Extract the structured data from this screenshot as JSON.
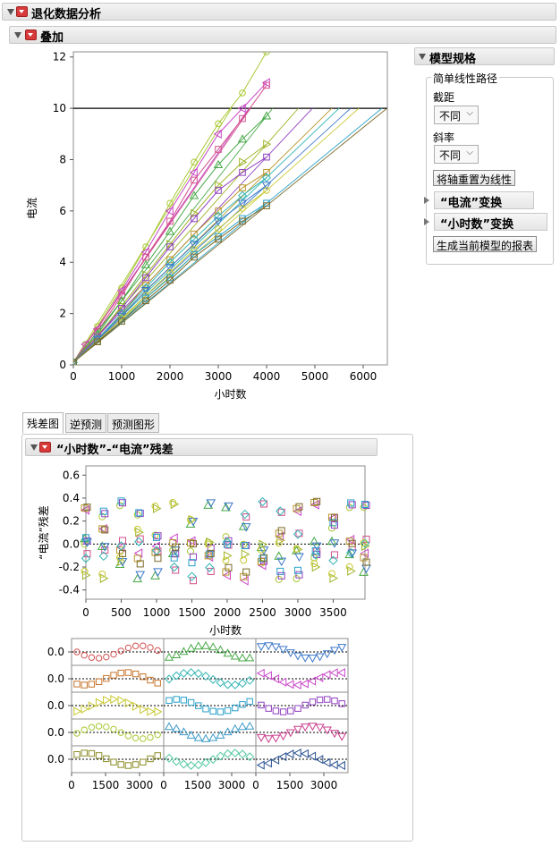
{
  "report": {
    "title": "退化数据分析",
    "overlay_title": "叠加"
  },
  "model_spec": {
    "title": "模型规格",
    "group_title": "简单线性路径",
    "intercept_label": "截距",
    "intercept_value": "不同",
    "slope_label": "斜率",
    "slope_value": "不同",
    "reset_axes_button": "将轴重置为线性",
    "y_transform_label": "“电流”变换",
    "x_transform_label": "“小时数”变换",
    "generate_report_button": "生成当前模型的报表"
  },
  "tabs": [
    "残差图",
    "逆预测",
    "预测图形"
  ],
  "residual_section_title": "“小时数”-“电流”残差",
  "chart_data": [
    {
      "type": "line",
      "xlabel": "小时数",
      "ylabel": "电流",
      "xlim": [
        0,
        6500
      ],
      "ylim": [
        0,
        12.2
      ],
      "x_ticks": [
        0,
        1000,
        2000,
        3000,
        4000,
        5000,
        6000
      ],
      "y_ticks": [
        0,
        2,
        4,
        6,
        8,
        10,
        12
      ],
      "threshold": 10,
      "series": [
        {
          "color": "#a8c832",
          "marker": "circle",
          "values": [
            [
              0,
              0.1
            ],
            [
              250,
              0.8
            ],
            [
              500,
              1.5
            ],
            [
              1000,
              3.0
            ],
            [
              1500,
              4.6
            ],
            [
              2000,
              6.3
            ],
            [
              2500,
              7.9
            ],
            [
              3000,
              9.4
            ],
            [
              3500,
              10.6
            ],
            [
              4000,
              12.2
            ]
          ]
        },
        {
          "color": "#c846c8",
          "marker": "tri-left",
          "values": [
            [
              0,
              0.1
            ],
            [
              250,
              0.8
            ],
            [
              500,
              1.4
            ],
            [
              1000,
              2.9
            ],
            [
              1500,
              4.4
            ],
            [
              2000,
              6.0
            ],
            [
              2500,
              7.5
            ],
            [
              3000,
              9.0
            ],
            [
              3500,
              10.0
            ],
            [
              4000,
              11.0
            ]
          ]
        },
        {
          "color": "#d2508c",
          "marker": "square",
          "values": [
            [
              0,
              0.1
            ],
            [
              500,
              1.3
            ],
            [
              1000,
              2.7
            ],
            [
              1500,
              4.2
            ],
            [
              2000,
              5.6
            ],
            [
              2500,
              7.2
            ],
            [
              3000,
              8.4
            ],
            [
              3500,
              9.6
            ],
            [
              4000,
              10.9
            ]
          ]
        },
        {
          "color": "#46a846",
          "marker": "tri-up",
          "values": [
            [
              0,
              0.1
            ],
            [
              500,
              1.2
            ],
            [
              1000,
              2.5
            ],
            [
              1500,
              3.9
            ],
            [
              2000,
              5.2
            ],
            [
              2500,
              6.6
            ],
            [
              3000,
              7.8
            ],
            [
              3500,
              8.8
            ],
            [
              4000,
              9.7
            ]
          ]
        },
        {
          "color": "#a0b428",
          "marker": "tri-right",
          "values": [
            [
              0,
              0.1
            ],
            [
              500,
              1.1
            ],
            [
              1000,
              2.3
            ],
            [
              1500,
              3.5
            ],
            [
              2000,
              4.7
            ],
            [
              2500,
              5.9
            ],
            [
              3000,
              7.0
            ],
            [
              3500,
              7.9
            ],
            [
              4000,
              8.6
            ]
          ]
        },
        {
          "color": "#9040c0",
          "marker": "square",
          "values": [
            [
              0,
              0.1
            ],
            [
              500,
              1.1
            ],
            [
              1000,
              2.2
            ],
            [
              1500,
              3.4
            ],
            [
              2000,
              4.6
            ],
            [
              2500,
              5.7
            ],
            [
              3000,
              6.8
            ],
            [
              3500,
              7.5
            ],
            [
              4000,
              8.1
            ]
          ]
        },
        {
          "color": "#b8962a",
          "marker": "square",
          "values": [
            [
              0,
              0.1
            ],
            [
              500,
              1.0
            ],
            [
              1000,
              2.0
            ],
            [
              1500,
              3.1
            ],
            [
              2000,
              4.1
            ],
            [
              2500,
              5.1
            ],
            [
              3000,
              6.0
            ],
            [
              3500,
              6.9
            ],
            [
              4000,
              7.5
            ]
          ]
        },
        {
          "color": "#32b4b4",
          "marker": "diamond",
          "values": [
            [
              0,
              0.1
            ],
            [
              500,
              1.0
            ],
            [
              1000,
              2.0
            ],
            [
              1500,
              3.0
            ],
            [
              2000,
              4.0
            ],
            [
              2500,
              4.9
            ],
            [
              3000,
              5.8
            ],
            [
              3500,
              6.6
            ],
            [
              4000,
              7.3
            ]
          ]
        },
        {
          "color": "#3c78c8",
          "marker": "tri-down",
          "values": [
            [
              0,
              0.1
            ],
            [
              500,
              1.0
            ],
            [
              1000,
              1.9
            ],
            [
              1500,
              2.9
            ],
            [
              2000,
              3.8
            ],
            [
              2500,
              4.7
            ],
            [
              3000,
              5.6
            ],
            [
              3500,
              6.3
            ],
            [
              4000,
              7.0
            ]
          ]
        },
        {
          "color": "#c8c832",
          "marker": "circle",
          "values": [
            [
              0,
              0.1
            ],
            [
              500,
              0.9
            ],
            [
              1000,
              1.8
            ],
            [
              1500,
              2.7
            ],
            [
              2000,
              3.6
            ],
            [
              2500,
              4.5
            ],
            [
              3000,
              5.3
            ],
            [
              3500,
              6.1
            ],
            [
              4000,
              6.8
            ]
          ]
        },
        {
          "color": "#28a0c8",
          "marker": "square",
          "values": [
            [
              0,
              0.1
            ],
            [
              500,
              0.9
            ],
            [
              1000,
              1.7
            ],
            [
              1500,
              2.6
            ],
            [
              2000,
              3.4
            ],
            [
              2500,
              4.3
            ],
            [
              3000,
              5.0
            ],
            [
              3500,
              5.7
            ],
            [
              4000,
              6.3
            ]
          ]
        },
        {
          "color": "#7a6a2a",
          "marker": "square",
          "values": [
            [
              0,
              0.1
            ],
            [
              500,
              0.9
            ],
            [
              1000,
              1.7
            ],
            [
              1500,
              2.5
            ],
            [
              2000,
              3.3
            ],
            [
              2500,
              4.2
            ],
            [
              3000,
              4.9
            ],
            [
              3500,
              5.6
            ],
            [
              4000,
              6.2
            ]
          ]
        }
      ]
    },
    {
      "type": "scatter",
      "xlabel": "小时数",
      "ylabel": "“电流”残差",
      "xlim": [
        0,
        3950
      ],
      "ylim": [
        -0.48,
        0.68
      ],
      "x_ticks": [
        0,
        500,
        1000,
        1500,
        2000,
        2500,
        3000,
        3500
      ],
      "y_ticks": [
        -0.4,
        -0.2,
        0.0,
        0.2,
        0.4,
        0.6
      ]
    },
    {
      "type": "scatter",
      "panel_grid": "5 rows x 3 cols",
      "y_tick_label": "0.0",
      "x_ticks": [
        "0",
        "1500",
        "3000"
      ]
    }
  ]
}
